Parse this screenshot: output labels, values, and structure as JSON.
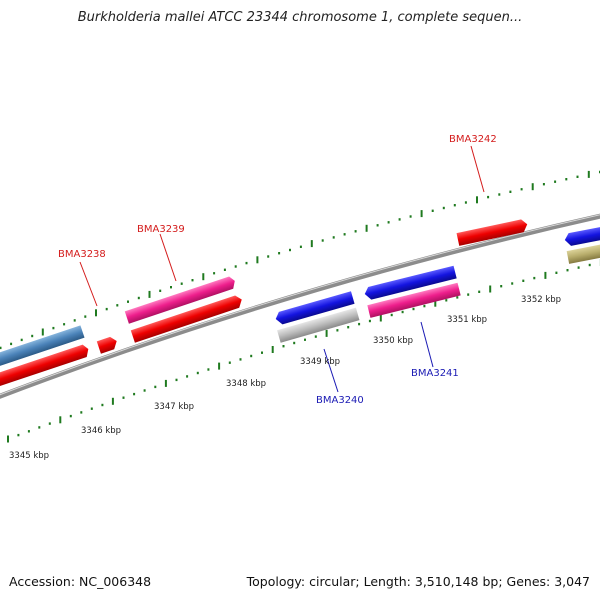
{
  "title": "Burkholderia mallei ATCC 23344 chromosome 1, complete sequen...",
  "footer": {
    "accession": "Accession: NC_006348",
    "stats": "Topology: circular; Length: 3,510,148 bp; Genes: 3,047"
  },
  "colors": {
    "red": "#e60000",
    "magenta": "#ee1e8c",
    "blue": "#1414d8",
    "steelblue": "#4a82b8",
    "gray": "#b8b8b8",
    "olive": "#b8ad6c",
    "tick": "#1f7a1f",
    "backbone": "#8c8c8c"
  },
  "scale_labels": [
    "3345 kbp",
    "3346 kbp",
    "3347 kbp",
    "3348 kbp",
    "3349 kbp",
    "3350 kbp",
    "3351 kbp",
    "3352 kbp"
  ],
  "gene_labels": [
    {
      "name": "BMA3238",
      "color": "red"
    },
    {
      "name": "BMA3239",
      "color": "red"
    },
    {
      "name": "BMA3242",
      "color": "red"
    },
    {
      "name": "BMA3240",
      "color": "blue"
    },
    {
      "name": "BMA3241",
      "color": "blue"
    }
  ]
}
